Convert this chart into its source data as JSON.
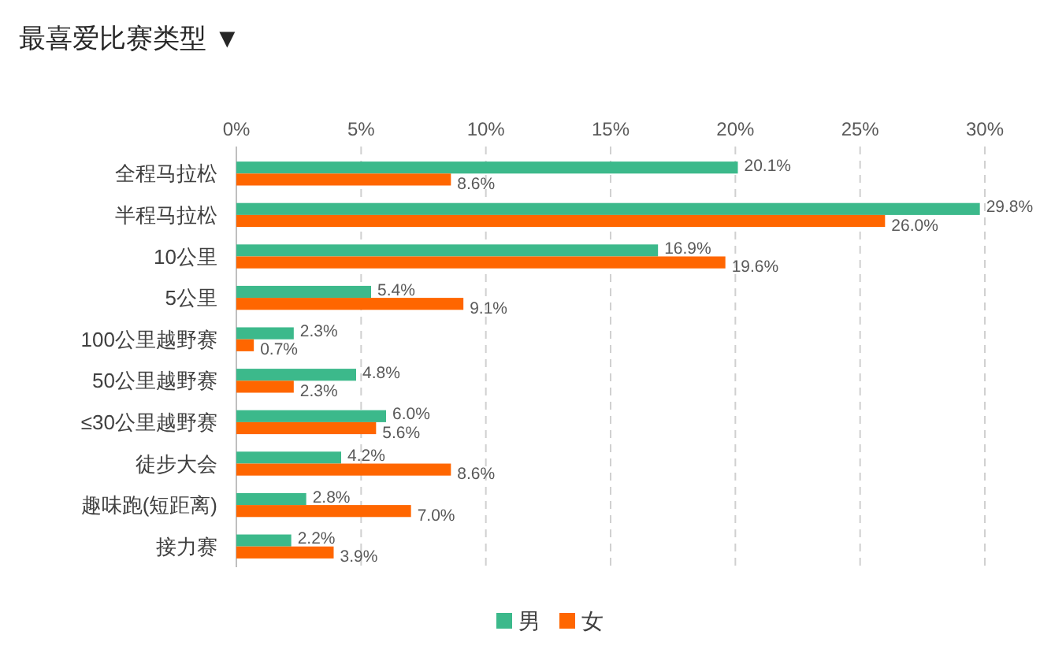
{
  "chart_data": {
    "type": "bar",
    "orientation": "horizontal",
    "title": "最喜爱比赛类型 ▼",
    "categories": [
      "全程马拉松",
      "半程马拉松",
      "10公里",
      "5公里",
      "100公里越野赛",
      "50公里越野赛",
      "≤30公里越野赛",
      "徒步大会",
      "趣味跑(短距离)",
      "接力赛"
    ],
    "series": [
      {
        "name": "男",
        "color": "#3cb98b",
        "values": [
          20.1,
          29.8,
          16.9,
          5.4,
          2.3,
          4.8,
          6.0,
          4.2,
          2.8,
          2.2
        ],
        "value_labels": [
          "20.1%",
          "29.8%",
          "16.9%",
          "5.4%",
          "2.3%",
          "4.8%",
          "6.0%",
          "4.2%",
          "2.8%",
          "2.2%"
        ]
      },
      {
        "name": "女",
        "color": "#ff6600",
        "values": [
          8.6,
          26.0,
          19.6,
          9.1,
          0.7,
          2.3,
          5.6,
          8.6,
          7.0,
          3.9
        ],
        "value_labels": [
          "8.6%",
          "26.0%",
          "19.6%",
          "9.1%",
          "0.7%",
          "2.3%",
          "5.6%",
          "8.6%",
          "7.0%",
          "3.9%"
        ]
      }
    ],
    "xlim": [
      0,
      30
    ],
    "xticks": [
      {
        "value": 0,
        "label": "0%"
      },
      {
        "value": 5,
        "label": "5%"
      },
      {
        "value": 10,
        "label": "10%"
      },
      {
        "value": 15,
        "label": "15%"
      },
      {
        "value": 20,
        "label": "20%"
      },
      {
        "value": 25,
        "label": "25%"
      },
      {
        "value": 30,
        "label": "30%"
      }
    ],
    "grid": "x",
    "legend": "bottom"
  }
}
